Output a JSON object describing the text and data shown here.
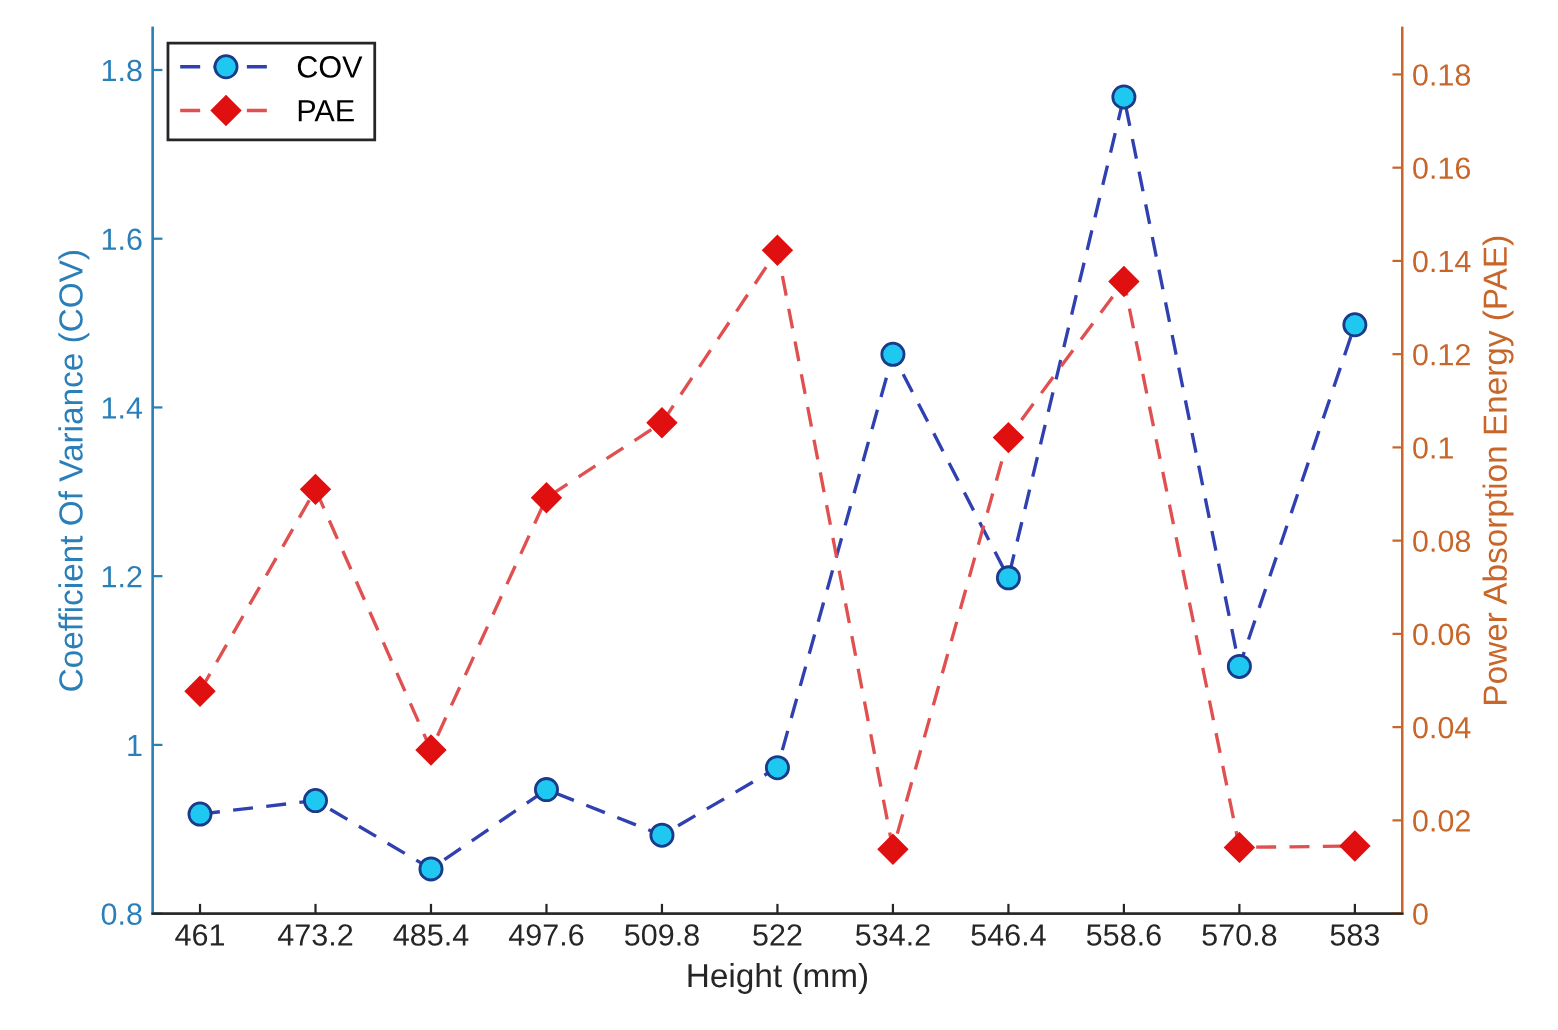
{
  "chart_data": {
    "type": "line",
    "xlabel": "Height (mm)",
    "ylabel": "Coefficient Of Variance (COV)",
    "y2label": "Power Absorption Energy (PAE)",
    "x": [
      461,
      473.2,
      485.4,
      497.6,
      509.8,
      522,
      534.2,
      546.4,
      558.6,
      570.8,
      583
    ],
    "series": [
      {
        "name": "COV",
        "color": "#1ec8f0",
        "marker": "circle",
        "line_style": "dashed",
        "values": [
          0.918,
          0.934,
          0.853,
          0.947,
          0.893,
          0.973,
          1.463,
          1.198,
          1.768,
          1.093,
          1.498
        ]
      },
      {
        "name": "PAE",
        "color": "#e01010",
        "marker": "diamond",
        "line_style": "dashed",
        "axis": "y2",
        "values": [
          0.0477,
          0.091,
          0.0351,
          0.0892,
          0.1053,
          0.1423,
          0.0138,
          0.1021,
          0.1356,
          0.0142,
          0.0145
        ]
      }
    ],
    "xlim": [
      456,
      588
    ],
    "xticks": [
      461,
      473.2,
      485.4,
      497.6,
      509.8,
      522,
      534.2,
      546.4,
      558.6,
      570.8,
      583
    ],
    "ylim": [
      0.8,
      1.85
    ],
    "yticks": [
      0.8,
      1,
      1.2,
      1.4,
      1.6,
      1.8
    ],
    "y2lim": [
      0,
      0.19
    ],
    "y2ticks": [
      0,
      0.02,
      0.04,
      0.06,
      0.08,
      0.1,
      0.12,
      0.14,
      0.16,
      0.18
    ],
    "legend": "top left",
    "grid": false
  }
}
